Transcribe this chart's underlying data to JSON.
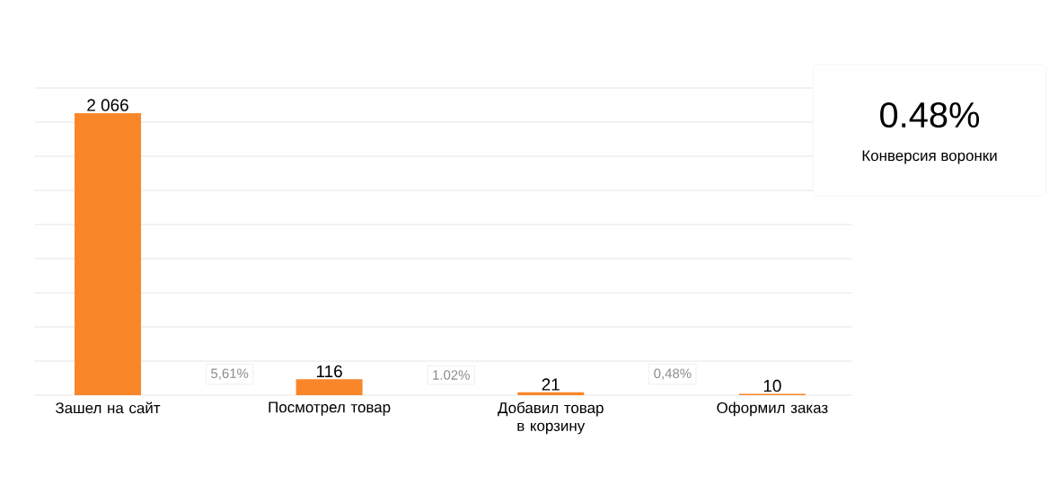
{
  "chart_data": {
    "type": "bar",
    "categories": [
      "Зашел на сайт",
      "Посмотрел товар",
      "Добавил товар в корзину",
      "Оформил заказ"
    ],
    "values": [
      2066,
      116,
      21,
      10
    ],
    "value_labels": [
      "2 066",
      "116",
      "21",
      "10"
    ],
    "color": "#f98729",
    "ylim": [
      0,
      2250
    ],
    "yticks": [
      {
        "value": 0,
        "label": null
      },
      {
        "value": 250,
        "label": null
      },
      {
        "value": 500,
        "label": null
      },
      {
        "value": 750,
        "label": null
      },
      {
        "value": 1000,
        "label": null
      },
      {
        "value": 1250,
        "label": null
      },
      {
        "value": 1500,
        "label": null
      },
      {
        "value": 1750,
        "label": null
      },
      {
        "value": 2000,
        "label": null
      },
      {
        "value": 2250,
        "label": null
      }
    ],
    "grid": "y",
    "tick_labels": "x",
    "annotations": [
      "5,61%",
      "1.02%",
      "0,48%",
      "0.48%",
      "Конверсия воронки"
    ]
  }
}
